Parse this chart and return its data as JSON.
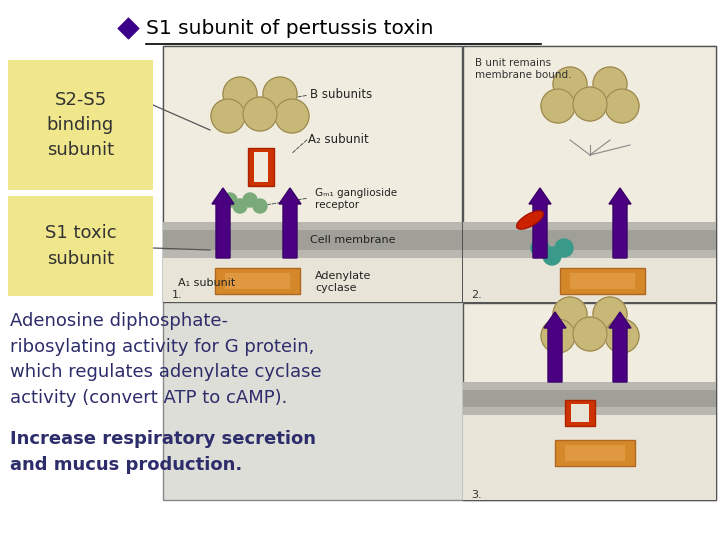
{
  "title": "S1 subunit of pertussis toxin",
  "title_color": "#000000",
  "title_fontsize": 14.5,
  "diamond_color": "#3a008a",
  "bg_color": "#ffffff",
  "label1_text": "S2-S5\nbinding\nsubunit",
  "label1_bg": "#f0e68c",
  "label1_fontsize": 13,
  "label2_text": "S1 toxic\nsubunit",
  "label2_bg": "#f0e68c",
  "label2_fontsize": 13,
  "body_text_normal": "Adenosine diphosphate-\nribosylating activity for G protein,\nwhich regulates adenylate cyclase\nactivity (convert ATP to cAMP).",
  "body_text_bold": "Increase respiratory secretion\nand mucus production.",
  "body_fontsize": 13,
  "body_text_color": "#2d2d6b",
  "label_text_color": "#333333",
  "arrow_color": "#555555",
  "underline_color": "#000000"
}
